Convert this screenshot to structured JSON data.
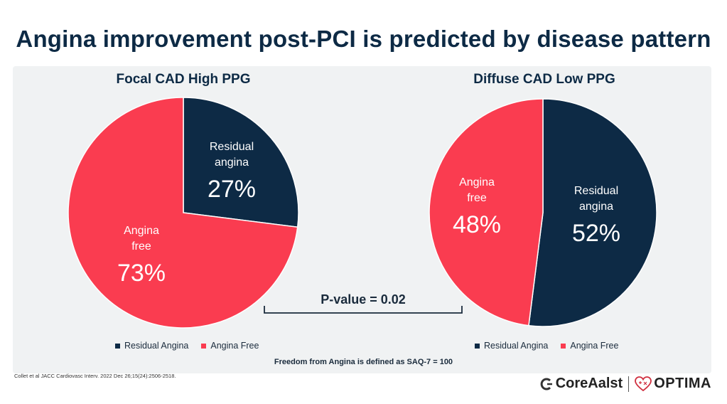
{
  "title": "Angina improvement post-PCI is predicted by disease pattern",
  "colors": {
    "residual": "#0d2a45",
    "free": "#fa3c50",
    "text_on_slice": "#ffffff"
  },
  "chart_data": [
    {
      "type": "pie",
      "title": "Focal CAD High PPG",
      "slices": [
        {
          "name": "Residual angina",
          "value": 27,
          "label_lines": [
            "Residual",
            "angina"
          ],
          "pct_label": "27%",
          "color": "#0d2a45"
        },
        {
          "name": "Angina free",
          "value": 73,
          "label_lines": [
            "Angina",
            "free"
          ],
          "pct_label": "73%",
          "color": "#fa3c50"
        }
      ],
      "legend": [
        "Residual Angina",
        "Angina Free"
      ],
      "legend_position": "bottom"
    },
    {
      "type": "pie",
      "title": "Diffuse CAD Low PPG",
      "slices": [
        {
          "name": "Residual angina",
          "value": 52,
          "label_lines": [
            "Residual",
            "angina"
          ],
          "pct_label": "52%",
          "color": "#0d2a45"
        },
        {
          "name": "Angina free",
          "value": 48,
          "label_lines": [
            "Angina",
            "free"
          ],
          "pct_label": "48%",
          "color": "#fa3c50"
        }
      ],
      "legend": [
        "Residual Angina",
        "Angina Free"
      ],
      "legend_position": "bottom"
    }
  ],
  "pvalue": "P-value = 0.02",
  "footnote": "Freedom from Angina is defined as SAQ-7 = 100",
  "citation": "Collet et al JACC Cardiovasc Interv. 2022 Dec 26;15(24):2506-2518.",
  "brand": {
    "left": "CoreAalst",
    "right": "OPTIMA",
    "left_icon": "c-arrow-icon",
    "right_icon": "heart-icon"
  }
}
